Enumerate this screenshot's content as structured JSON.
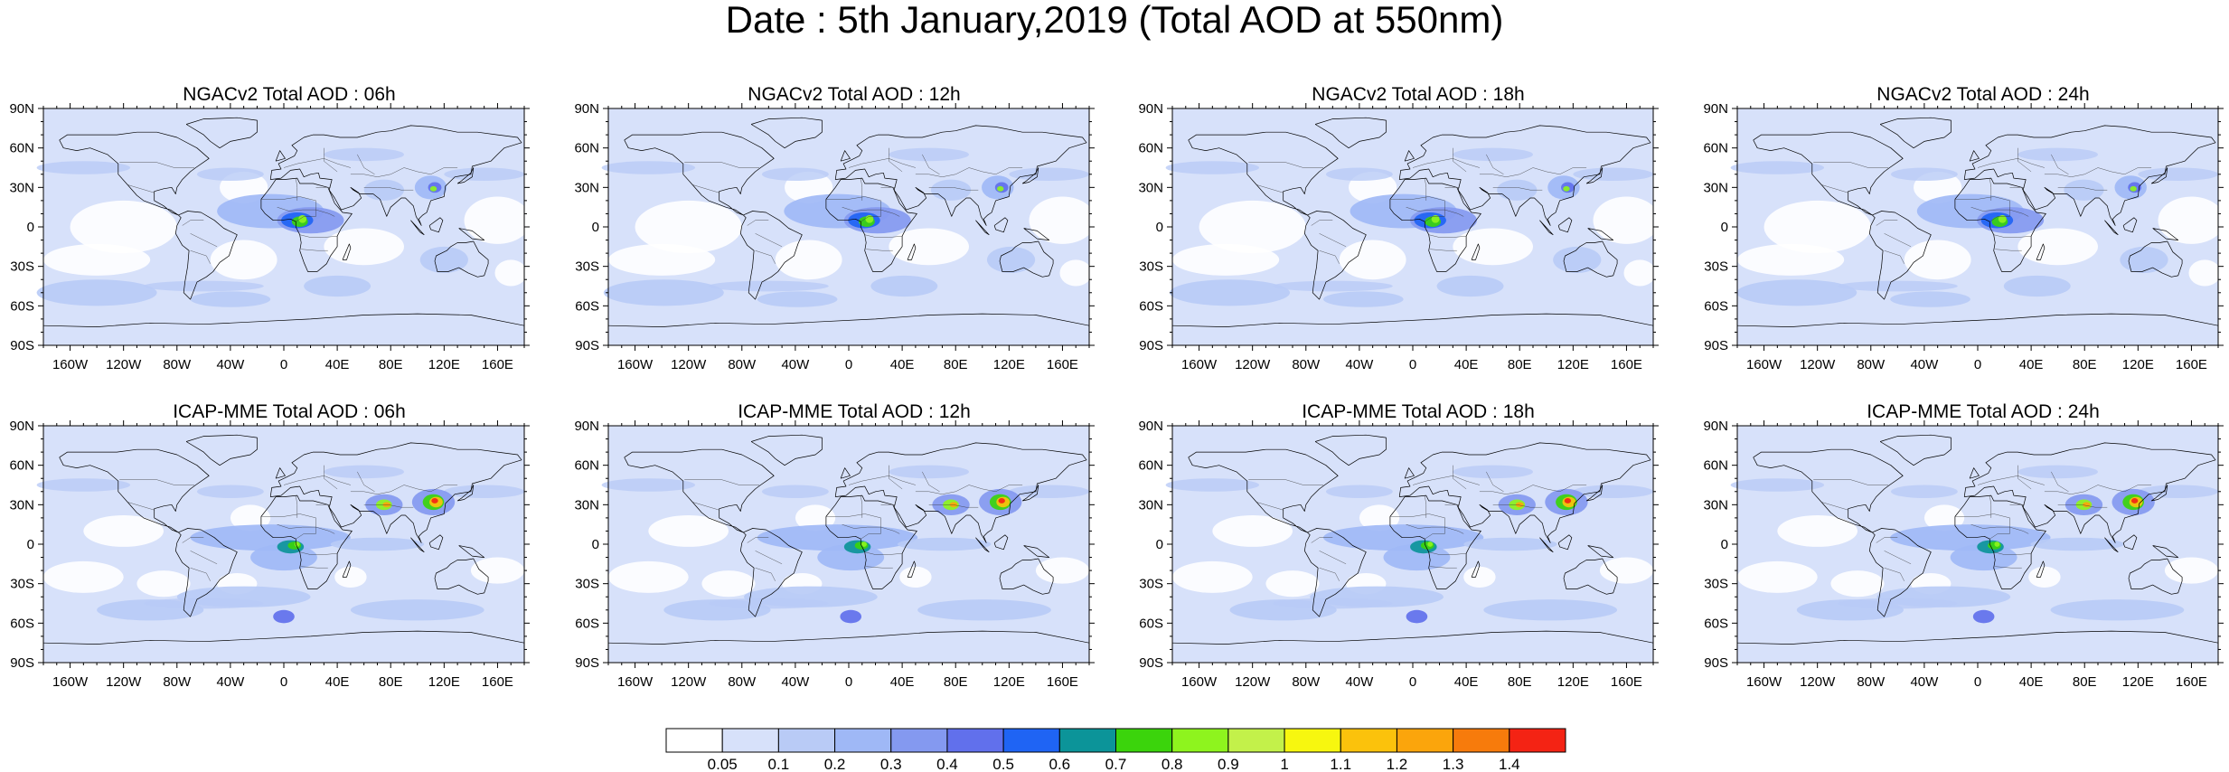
{
  "title": "Date : 5th January,2019 (Total AOD at 550nm)",
  "lat_ticks": [
    "90N",
    "60N",
    "30N",
    "0",
    "30S",
    "60S",
    "90S"
  ],
  "lon_ticks": [
    "160W",
    "120W",
    "80W",
    "40W",
    "0",
    "40E",
    "80E",
    "120E",
    "160E"
  ],
  "panels": [
    {
      "title": "NGACv2 Total AOD : 06h",
      "model": "NGACv2",
      "hour": "06h"
    },
    {
      "title": "NGACv2 Total AOD : 12h",
      "model": "NGACv2",
      "hour": "12h"
    },
    {
      "title": "NGACv2 Total AOD : 18h",
      "model": "NGACv2",
      "hour": "18h"
    },
    {
      "title": "NGACv2 Total AOD : 24h",
      "model": "NGACv2",
      "hour": "24h"
    },
    {
      "title": "ICAP-MME Total AOD : 06h",
      "model": "ICAP-MME",
      "hour": "06h"
    },
    {
      "title": "ICAP-MME Total AOD : 12h",
      "model": "ICAP-MME",
      "hour": "12h"
    },
    {
      "title": "ICAP-MME Total AOD : 18h",
      "model": "ICAP-MME",
      "hour": "18h"
    },
    {
      "title": "ICAP-MME Total AOD : 24h",
      "model": "ICAP-MME",
      "hour": "24h"
    }
  ],
  "colorbar": {
    "labels": [
      "0.05",
      "0.1",
      "0.2",
      "0.3",
      "0.4",
      "0.5",
      "0.6",
      "0.7",
      "0.8",
      "0.9",
      "1",
      "1.1",
      "1.2",
      "1.3",
      "1.4"
    ],
    "colors": [
      "#ffffff",
      "#d7e1fa",
      "#b9cbf6",
      "#9fb8f6",
      "#8499f0",
      "#6170ec",
      "#1f64f4",
      "#0c9499",
      "#3bd40c",
      "#8ef41e",
      "#c3f14a",
      "#f7f70f",
      "#fbc20c",
      "#fba50c",
      "#f77b0c",
      "#f42314"
    ]
  }
}
